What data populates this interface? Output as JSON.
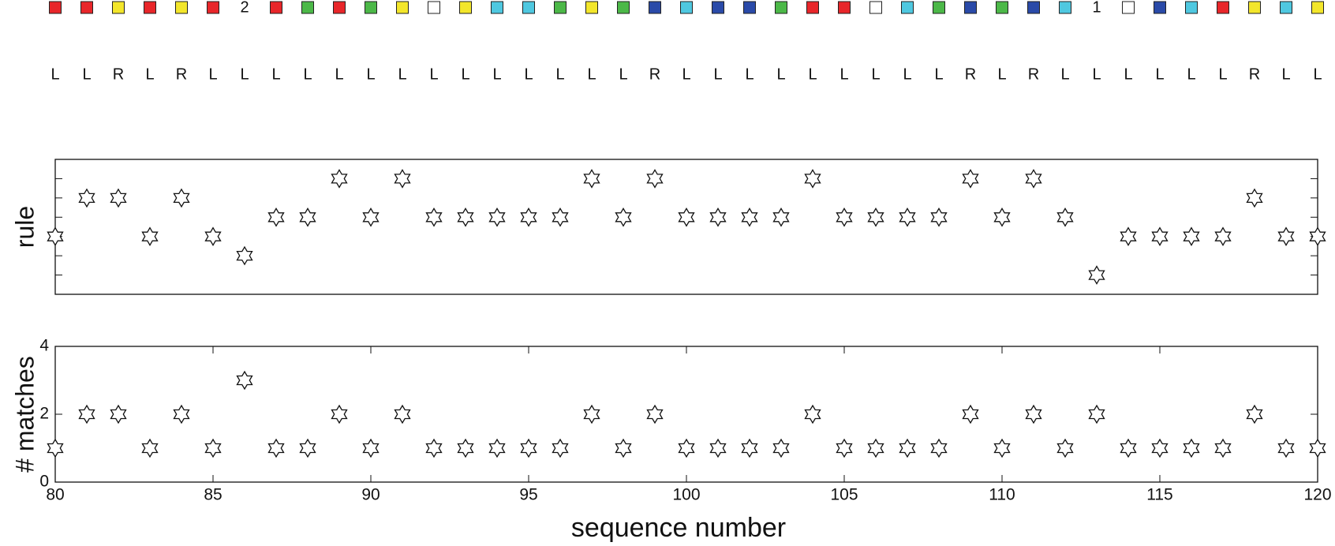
{
  "sequence": {
    "colors": [
      "#e8262a",
      "#e8262a",
      "#f3e62b",
      "#e8262a",
      "#f3e62b",
      "#e8262a",
      null,
      "#e8262a",
      "#4cb848",
      "#e8262a",
      "#4cb848",
      "#f3e62b",
      "#ffffff",
      "#f3e62b",
      "#4fc8e0",
      "#4fc8e0",
      "#4cb848",
      "#f3e62b",
      "#4cb848",
      "#2a4aa8",
      "#4fc8e0",
      "#2a4aa8",
      "#2a4aa8",
      "#4cb848",
      "#e8262a",
      "#e8262a",
      "#ffffff",
      "#4fc8e0",
      "#4cb848",
      "#2a4aa8",
      "#4cb848",
      "#2a4aa8",
      "#4fc8e0",
      null,
      "#ffffff",
      "#2a4aa8",
      "#4fc8e0",
      "#e8262a",
      "#f3e62b",
      "#4fc8e0",
      "#f3e62b"
    ],
    "markers": [
      null,
      null,
      null,
      null,
      null,
      null,
      "2",
      null,
      null,
      null,
      null,
      null,
      null,
      null,
      null,
      null,
      null,
      null,
      null,
      null,
      null,
      null,
      null,
      null,
      null,
      null,
      null,
      null,
      null,
      null,
      null,
      null,
      null,
      "1",
      null,
      null,
      null,
      null,
      null,
      null,
      null
    ],
    "letters": [
      "L",
      "L",
      "R",
      "L",
      "R",
      "L",
      "L",
      "L",
      "L",
      "L",
      "L",
      "L",
      "L",
      "L",
      "L",
      "L",
      "L",
      "L",
      "L",
      "R",
      "L",
      "L",
      "L",
      "L",
      "L",
      "L",
      "L",
      "L",
      "L",
      "R",
      "L",
      "R",
      "L",
      "L",
      "L",
      "L",
      "L",
      "L",
      "R",
      "L",
      "L"
    ]
  },
  "chart_data": [
    {
      "type": "scatter",
      "ylabel": "rule",
      "x": [
        80,
        81,
        82,
        83,
        84,
        85,
        86,
        87,
        88,
        89,
        90,
        91,
        92,
        93,
        94,
        95,
        96,
        97,
        98,
        99,
        100,
        101,
        102,
        103,
        104,
        105,
        106,
        107,
        108,
        109,
        110,
        111,
        112,
        113,
        114,
        115,
        116,
        117,
        118,
        119,
        120
      ],
      "values": [
        3,
        5,
        5,
        3,
        5,
        3,
        2,
        4,
        4,
        6,
        4,
        6,
        4,
        4,
        4,
        4,
        4,
        6,
        4,
        6,
        4,
        4,
        4,
        4,
        6,
        4,
        4,
        4,
        4,
        6,
        4,
        6,
        4,
        1,
        3,
        3,
        3,
        3,
        5,
        3,
        3
      ],
      "xlim": [
        80,
        120
      ],
      "ylim": [
        0,
        7
      ],
      "yticks": [
        1,
        2,
        3,
        4,
        5,
        6
      ]
    },
    {
      "type": "scatter",
      "ylabel": "# matches",
      "xlabel": "sequence number",
      "x": [
        80,
        81,
        82,
        83,
        84,
        85,
        86,
        87,
        88,
        89,
        90,
        91,
        92,
        93,
        94,
        95,
        96,
        97,
        98,
        99,
        100,
        101,
        102,
        103,
        104,
        105,
        106,
        107,
        108,
        109,
        110,
        111,
        112,
        113,
        114,
        115,
        116,
        117,
        118,
        119,
        120
      ],
      "values": [
        1,
        2,
        2,
        1,
        2,
        1,
        3,
        1,
        1,
        2,
        1,
        2,
        1,
        1,
        1,
        1,
        1,
        2,
        1,
        2,
        1,
        1,
        1,
        1,
        2,
        1,
        1,
        1,
        1,
        2,
        1,
        2,
        1,
        2,
        1,
        1,
        1,
        1,
        2,
        1,
        1
      ],
      "xlim": [
        80,
        120
      ],
      "ylim": [
        0,
        4
      ],
      "yticks": [
        0,
        2,
        4
      ],
      "xticks": [
        80,
        85,
        90,
        95,
        100,
        105,
        110,
        115,
        120
      ]
    }
  ]
}
